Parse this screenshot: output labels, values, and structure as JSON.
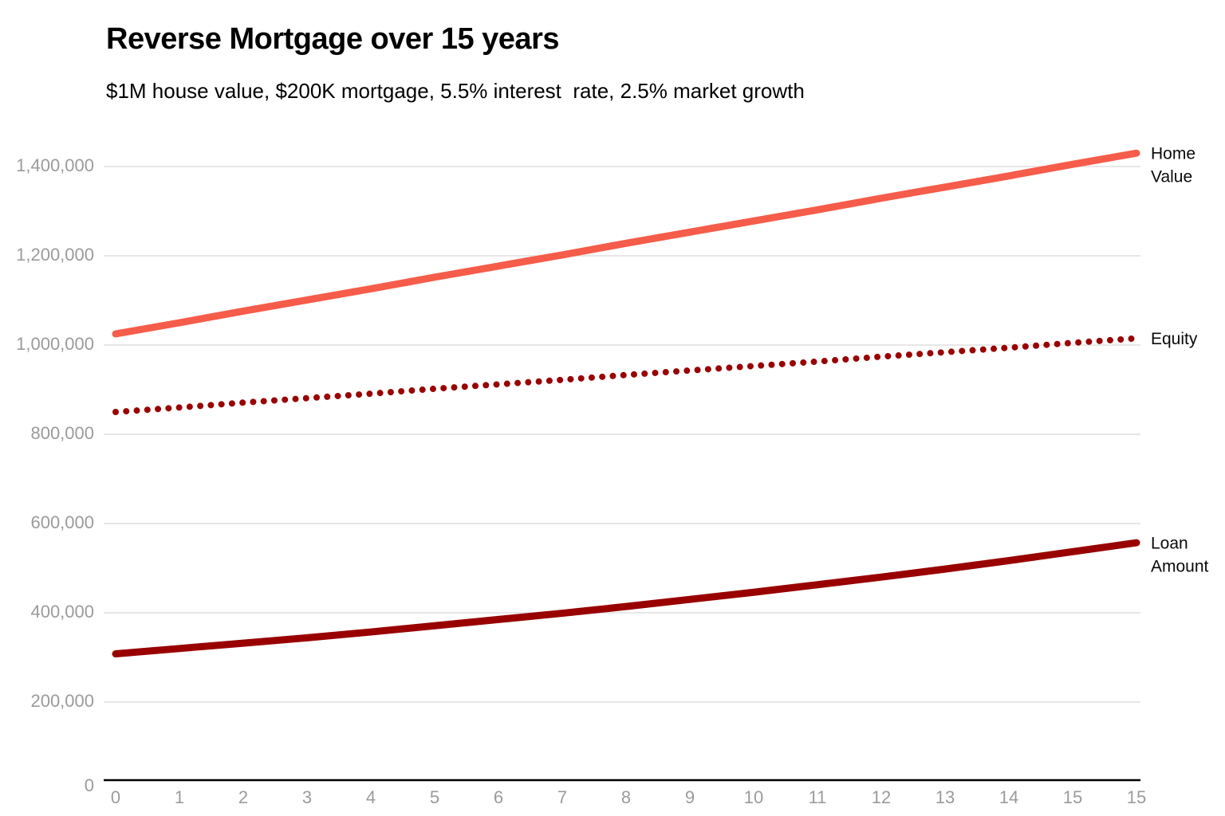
{
  "chart_data": {
    "type": "line",
    "title": "Reverse Mortgage over 15 years",
    "subtitle": "$1M house value, $200K mortgage, 5.5% interest  rate, 2.5% market growth",
    "grid": "horizontal-only",
    "legend_position": "labels-at-right-line-ends",
    "ylim": [
      0,
      1450000
    ],
    "x_tick_labels": [
      "0",
      "1",
      "2",
      "3",
      "4",
      "5",
      "6",
      "7",
      "8",
      "9",
      "10",
      "11",
      "12",
      "13",
      "14",
      "15",
      "15"
    ],
    "y_ticks": [
      {
        "value": 0,
        "label": "0"
      },
      {
        "value": 200000,
        "label": "200,000"
      },
      {
        "value": 400000,
        "label": "400,000"
      },
      {
        "value": 600000,
        "label": "600,000"
      },
      {
        "value": 800000,
        "label": "800,000"
      },
      {
        "value": 1000000,
        "label": "1,000,000"
      },
      {
        "value": 1200000,
        "label": "1,200,000"
      },
      {
        "value": 1400000,
        "label": "1,400,000"
      }
    ],
    "series": [
      {
        "name": "Home Value",
        "label_lines": [
          "Home",
          "Value"
        ],
        "color": "#F65C4A",
        "style": "solid",
        "values": [
          1025000,
          1050000,
          1076000,
          1101000,
          1126000,
          1152000,
          1177000,
          1202000,
          1228000,
          1253000,
          1278000,
          1303000,
          1329000,
          1354000,
          1379000,
          1405000,
          1430000
        ]
      },
      {
        "name": "Equity",
        "label_lines": [
          "Equity"
        ],
        "color": "#990000",
        "style": "dotted",
        "values": [
          850000,
          860000,
          871000,
          881000,
          891000,
          902000,
          912000,
          922000,
          933000,
          943000,
          953000,
          963000,
          974000,
          984000,
          994000,
          1005000,
          1015000
        ]
      },
      {
        "name": "Loan Amount",
        "label_lines": [
          "Loan",
          "Amount"
        ],
        "color": "#990000",
        "style": "solid",
        "values": [
          308000,
          320000,
          332000,
          344000,
          357000,
          371000,
          385000,
          399000,
          414000,
          430000,
          446000,
          463000,
          480000,
          498000,
          517000,
          537000,
          557000
        ]
      }
    ],
    "colors": {
      "gridline": "#E7E7E7",
      "axis_line": "#000000",
      "tick_label": "#9B9B9B",
      "series_label_text": "#0A0A0A"
    }
  }
}
